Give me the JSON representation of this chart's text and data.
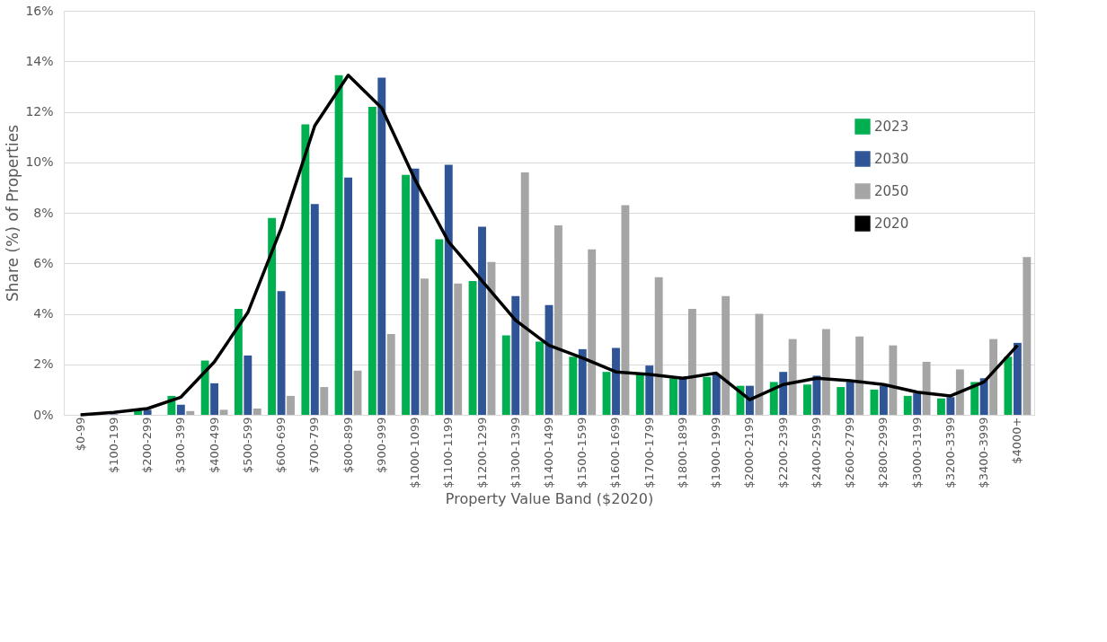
{
  "chart_data": {
    "type": "bar",
    "xlabel": "Property Value Band ($2020)",
    "ylabel": "Share (%) of Properties",
    "categories": [
      "$0-99",
      "$100-199",
      "$200-299",
      "$300-399",
      "$400-499",
      "$500-599",
      "$600-699",
      "$700-799",
      "$800-899",
      "$900-999",
      "$1000-1099",
      "$1100-1199",
      "$1200-1299",
      "$1300-1399",
      "$1400-1499",
      "$1500-1599",
      "$1600-1699",
      "$1700-1799",
      "$1800-1899",
      "$1900-1999",
      "$2000-2199",
      "$2200-2399",
      "$2400-2599",
      "$2600-2799",
      "$2800-2999",
      "$3000-3199",
      "$3200-3399",
      "$3400-3999",
      "$4000+"
    ],
    "series": [
      {
        "name": "2023",
        "color": "#00b050",
        "values": [
          0,
          null,
          0.2,
          0.75,
          2.15,
          4.2,
          7.8,
          11.5,
          13.45,
          12.2,
          9.5,
          6.95,
          5.3,
          3.15,
          2.9,
          2.3,
          1.7,
          1.6,
          1.45,
          1.5,
          1.15,
          1.3,
          1.2,
          1.1,
          1.0,
          0.75,
          0.65,
          1.3,
          2.3
        ]
      },
      {
        "name": "2030",
        "color": "#2f5597",
        "values": [
          0,
          0.02,
          0.2,
          0.4,
          1.25,
          2.35,
          4.9,
          8.35,
          9.4,
          13.35,
          9.75,
          9.9,
          7.45,
          4.7,
          4.35,
          2.6,
          2.65,
          1.95,
          1.5,
          1.6,
          1.15,
          1.7,
          1.55,
          1.3,
          1.15,
          0.85,
          0.7,
          1.45,
          2.85
        ]
      },
      {
        "name": "2050",
        "color": "#a5a5a5",
        "values": [
          0,
          0,
          null,
          0.15,
          0.2,
          0.25,
          0.75,
          1.1,
          1.75,
          3.2,
          5.4,
          5.2,
          6.05,
          9.6,
          7.5,
          6.55,
          8.3,
          5.45,
          4.2,
          4.7,
          4.0,
          3.0,
          3.4,
          3.1,
          2.75,
          2.1,
          1.8,
          3.0,
          6.25
        ]
      },
      {
        "name": "2020",
        "type": "line",
        "color": "#000000",
        "values": [
          0,
          0.1,
          0.25,
          0.7,
          2.1,
          4.05,
          7.4,
          11.45,
          13.45,
          12.15,
          9.3,
          6.85,
          5.3,
          3.75,
          2.75,
          2.25,
          1.7,
          1.6,
          1.45,
          1.65,
          0.6,
          1.2,
          1.45,
          1.35,
          1.2,
          0.9,
          0.75,
          1.3,
          2.75
        ]
      }
    ],
    "ylim": [
      0,
      16
    ],
    "yticks": [
      {
        "value": 0,
        "label": "0%"
      },
      {
        "value": 2,
        "label": "2%"
      },
      {
        "value": 4,
        "label": "4%"
      },
      {
        "value": 6,
        "label": "6%"
      },
      {
        "value": 8,
        "label": "8%"
      },
      {
        "value": 10,
        "label": "10%"
      },
      {
        "value": 12,
        "label": "12%"
      },
      {
        "value": 14,
        "label": "14%"
      },
      {
        "value": 16,
        "label": "16%"
      }
    ],
    "grid": "y",
    "legend": "right",
    "line_style": "solid",
    "marker": "none"
  }
}
